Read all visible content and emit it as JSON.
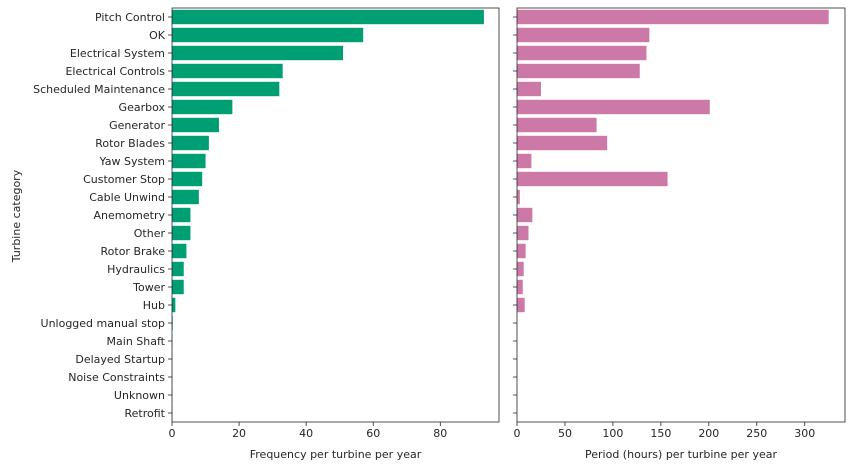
{
  "chart_data": [
    {
      "type": "bar",
      "orientation": "horizontal",
      "ylabel": "Turbine category",
      "xlabel": "Frequency per turbine per year",
      "xlim": [
        0,
        97.5
      ],
      "xticks": [
        0,
        20,
        40,
        60,
        80
      ],
      "color": "#009e73",
      "categories": [
        "Pitch Control",
        "OK",
        "Electrical System",
        "Electrical Controls",
        "Scheduled Maintenance",
        "Gearbox",
        "Generator",
        "Rotor Blades",
        "Yaw System",
        "Customer Stop",
        "Cable Unwind",
        "Anemometry",
        "Other",
        "Rotor Brake",
        "Hydraulics",
        "Tower",
        "Hub",
        "Unlogged manual stop",
        "Main Shaft",
        "Delayed Startup",
        "Noise Constraints",
        "Unknown",
        "Retrofit"
      ],
      "values": [
        93,
        57,
        51,
        33,
        32,
        18,
        14,
        11,
        10,
        9,
        8,
        5.5,
        5.5,
        4.3,
        3.5,
        3.5,
        1,
        0.2,
        0.1,
        0.1,
        0.1,
        0.1,
        0.1
      ],
      "grid": false
    },
    {
      "type": "bar",
      "orientation": "horizontal",
      "xlabel": "Period (hours) per turbine per year",
      "xlim": [
        0,
        342
      ],
      "xticks": [
        0,
        50,
        100,
        150,
        200,
        250,
        300
      ],
      "color": "#cc79a7",
      "categories": [
        "Pitch Control",
        "OK",
        "Electrical System",
        "Electrical Controls",
        "Scheduled Maintenance",
        "Gearbox",
        "Generator",
        "Rotor Blades",
        "Yaw System",
        "Customer Stop",
        "Cable Unwind",
        "Anemometry",
        "Other",
        "Rotor Brake",
        "Hydraulics",
        "Tower",
        "Hub",
        "Unlogged manual stop",
        "Main Shaft",
        "Delayed Startup",
        "Noise Constraints",
        "Unknown",
        "Retrofit"
      ],
      "values": [
        325,
        138,
        135,
        128,
        25,
        201,
        83,
        94,
        15,
        157,
        3,
        16,
        12,
        9,
        7,
        6,
        8,
        0,
        0,
        0,
        0,
        0,
        0
      ],
      "grid": false
    }
  ]
}
